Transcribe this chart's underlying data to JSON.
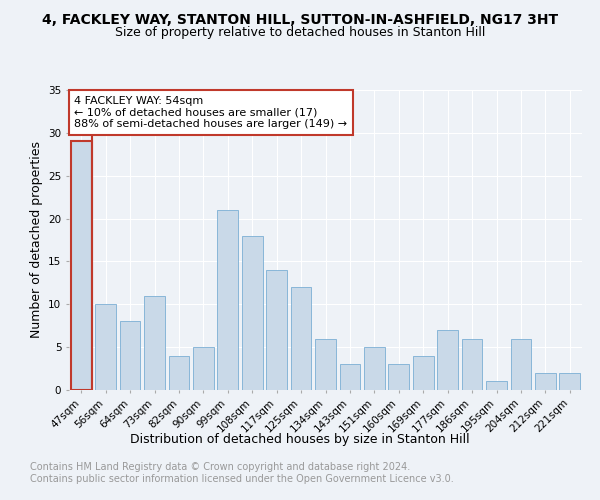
{
  "title": "4, FACKLEY WAY, STANTON HILL, SUTTON-IN-ASHFIELD, NG17 3HT",
  "subtitle": "Size of property relative to detached houses in Stanton Hill",
  "xlabel": "Distribution of detached houses by size in Stanton Hill",
  "ylabel": "Number of detached properties",
  "categories": [
    "47sqm",
    "56sqm",
    "64sqm",
    "73sqm",
    "82sqm",
    "90sqm",
    "99sqm",
    "108sqm",
    "117sqm",
    "125sqm",
    "134sqm",
    "143sqm",
    "151sqm",
    "160sqm",
    "169sqm",
    "177sqm",
    "186sqm",
    "195sqm",
    "204sqm",
    "212sqm",
    "221sqm"
  ],
  "values": [
    29,
    10,
    8,
    11,
    4,
    5,
    21,
    18,
    14,
    12,
    6,
    3,
    5,
    3,
    4,
    7,
    6,
    1,
    6,
    2,
    2
  ],
  "bar_color": "#c9d9e8",
  "bar_edge_color": "#7bafd4",
  "highlight_bar_index": 0,
  "highlight_edge_color": "#c0392b",
  "annotation_text": "4 FACKLEY WAY: 54sqm\n← 10% of detached houses are smaller (17)\n88% of semi-detached houses are larger (149) →",
  "annotation_box_color": "white",
  "annotation_box_edge_color": "#c0392b",
  "vline_color": "#c0392b",
  "ylim": [
    0,
    35
  ],
  "yticks": [
    0,
    5,
    10,
    15,
    20,
    25,
    30,
    35
  ],
  "footer_text": "Contains HM Land Registry data © Crown copyright and database right 2024.\nContains public sector information licensed under the Open Government Licence v3.0.",
  "bg_color": "#eef2f7",
  "plot_bg_color": "#eef2f7",
  "grid_color": "white",
  "title_fontsize": 10,
  "subtitle_fontsize": 9,
  "ylabel_fontsize": 9,
  "xlabel_fontsize": 9,
  "tick_fontsize": 7.5,
  "annotation_fontsize": 8,
  "footer_fontsize": 7
}
